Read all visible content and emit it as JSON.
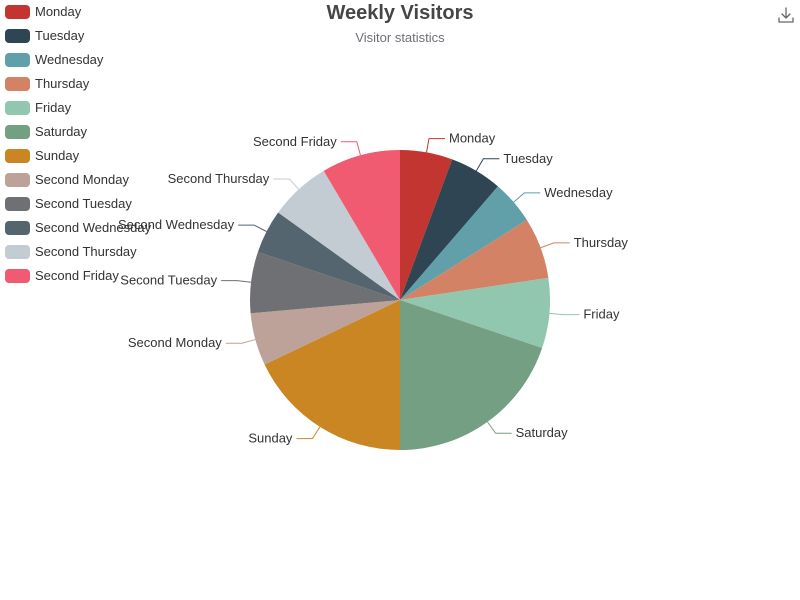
{
  "toolbox": {
    "download_icon": "download-icon"
  },
  "chart_data": {
    "type": "pie",
    "title": "Weekly Visitors",
    "subtitle": "Visitor statistics",
    "legend_position": "top-left",
    "categories": [
      "Monday",
      "Tuesday",
      "Wednesday",
      "Thursday",
      "Friday",
      "Saturday",
      "Sunday",
      "Second Monday",
      "Second Tuesday",
      "Second Wednesday",
      "Second Thursday",
      "Second Friday"
    ],
    "values": [
      6,
      6,
      5,
      7,
      8,
      21,
      19,
      6,
      7,
      5,
      7,
      9
    ],
    "colors": [
      "#c23531",
      "#2f4554",
      "#61a0a8",
      "#d48265",
      "#91c7ae",
      "#749f83",
      "#ca8622",
      "#bda29a",
      "#6e7074",
      "#546570",
      "#c4ccd3",
      "#f05b72"
    ]
  }
}
